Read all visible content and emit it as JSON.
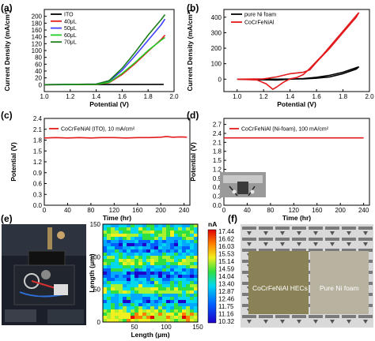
{
  "panels": {
    "a": "(a)",
    "b": "(b)",
    "c": "(c)",
    "d": "(d)",
    "e": "(e)",
    "f": "(f)"
  },
  "chart_data": [
    {
      "id": "a",
      "type": "line",
      "xlabel": "Potential (V)",
      "ylabel": "Current Density (mA/cm²)",
      "xlim": [
        1.0,
        2.0
      ],
      "ylim": [
        -20,
        220
      ],
      "xticks": [
        "1.0",
        "1.2",
        "1.4",
        "1.6",
        "1.8",
        "2.0"
      ],
      "yticks": [
        "0",
        "20",
        "40",
        "60",
        "80",
        "100",
        "120",
        "140",
        "160",
        "180",
        "200"
      ],
      "legend_position": "top-left",
      "series": [
        {
          "name": "ITO",
          "color": "#000000",
          "x": [
            1.0,
            1.92
          ],
          "y": [
            0,
            1
          ]
        },
        {
          "name": "40μL",
          "color": "#e31a1c",
          "x": [
            1.0,
            1.4,
            1.5,
            1.6,
            1.7,
            1.8,
            1.9,
            1.93
          ],
          "y": [
            0,
            1,
            6,
            30,
            62,
            98,
            132,
            145
          ]
        },
        {
          "name": "50μL",
          "color": "#4040ff",
          "x": [
            1.0,
            1.4,
            1.5,
            1.6,
            1.7,
            1.8,
            1.9,
            1.93
          ],
          "y": [
            0,
            2,
            10,
            42,
            85,
            130,
            175,
            192
          ]
        },
        {
          "name": "60μL",
          "color": "#22cc22",
          "x": [
            1.0,
            1.4,
            1.5,
            1.6,
            1.7,
            1.8,
            1.9,
            1.93
          ],
          "y": [
            0,
            1,
            7,
            33,
            65,
            100,
            130,
            138
          ]
        },
        {
          "name": "70μL",
          "color": "#1a7f1a",
          "x": [
            1.0,
            1.4,
            1.5,
            1.6,
            1.7,
            1.8,
            1.9,
            1.93
          ],
          "y": [
            0,
            2,
            12,
            48,
            95,
            145,
            190,
            205
          ]
        }
      ]
    },
    {
      "id": "b",
      "type": "line",
      "xlabel": "Potential (V)",
      "ylabel": "Current Density (mA/cm²)",
      "xlim": [
        0.9,
        2.0
      ],
      "ylim": [
        -80,
        450
      ],
      "xticks": [
        "1.0",
        "1.2",
        "1.4",
        "1.6",
        "1.8",
        "2.0"
      ],
      "yticks": [
        "0",
        "100",
        "200",
        "300",
        "400"
      ],
      "legend_position": "top-left",
      "series": [
        {
          "name": "pure Ni foam",
          "color": "#000000",
          "x": [
            1.0,
            1.3,
            1.5,
            1.6,
            1.7,
            1.8,
            1.9,
            1.92,
            1.8,
            1.7,
            1.6,
            1.5,
            1.4,
            1.3,
            1.2,
            1.0
          ],
          "y": [
            0,
            0,
            2,
            6,
            15,
            35,
            65,
            80,
            45,
            25,
            12,
            4,
            0,
            -6,
            -4,
            0
          ]
        },
        {
          "name": "CoCrFeNiAl",
          "color": "#e31a1c",
          "x": [
            1.0,
            1.2,
            1.3,
            1.4,
            1.5,
            1.55,
            1.6,
            1.7,
            1.8,
            1.9,
            1.92,
            1.85,
            1.75,
            1.65,
            1.55,
            1.5,
            1.45,
            1.4,
            1.35,
            1.3,
            1.27,
            1.22,
            1.15,
            1.0
          ],
          "y": [
            0,
            2,
            15,
            35,
            45,
            60,
            110,
            200,
            300,
            400,
            430,
            360,
            260,
            160,
            70,
            30,
            10,
            2,
            -20,
            -50,
            -65,
            -30,
            -5,
            0
          ]
        }
      ]
    },
    {
      "id": "c",
      "type": "line",
      "xlabel": "Time (hr)",
      "ylabel": "Potential (V)",
      "xlim": [
        0,
        250
      ],
      "ylim": [
        0.0,
        2.4
      ],
      "xticks": [
        "0",
        "40",
        "80",
        "120",
        "160",
        "200",
        "240"
      ],
      "yticks": [
        "0.0",
        "0.3",
        "0.6",
        "0.9",
        "1.2",
        "1.5",
        "1.8",
        "2.1",
        "2.4"
      ],
      "series": [
        {
          "name": "CoCrFeNiAl (ITO), 10 mA/cm²",
          "color": "#e31a1c",
          "x": [
            0,
            20,
            40,
            60,
            80,
            100,
            120,
            140,
            160,
            180,
            200,
            210,
            220,
            235,
            245
          ],
          "y": [
            1.86,
            1.87,
            1.86,
            1.87,
            1.86,
            1.87,
            1.87,
            1.86,
            1.87,
            1.87,
            1.88,
            1.9,
            1.88,
            1.89,
            1.88
          ]
        }
      ]
    },
    {
      "id": "d",
      "type": "line",
      "xlabel": "Time (hr)",
      "ylabel": "Potential (V)",
      "xlim": [
        0,
        250
      ],
      "ylim": [
        0.0,
        2.9
      ],
      "xticks": [
        "0",
        "40",
        "80",
        "120",
        "160",
        "200",
        "240"
      ],
      "yticks": [
        "0.0",
        "0.3",
        "0.6",
        "0.9",
        "1.2",
        "1.5",
        "1.8",
        "2.1",
        "2.4",
        "2.7"
      ],
      "series": [
        {
          "name": "CoCrFeNiAl (Ni-foam), 100 mA/cm²",
          "color": "#e31a1c",
          "x": [
            0,
            40,
            80,
            120,
            160,
            200,
            240
          ],
          "y": [
            2.25,
            2.25,
            2.25,
            2.25,
            2.25,
            2.25,
            2.25
          ]
        }
      ]
    },
    {
      "id": "e_map",
      "type": "heatmap",
      "xlabel": "Length (μm)",
      "ylabel": "Length (μm)",
      "xlim": [
        0,
        150
      ],
      "ylim": [
        0,
        150
      ],
      "xticks": [
        "50",
        "100",
        "150"
      ],
      "yticks": [
        "0",
        "50",
        "100",
        "150"
      ],
      "colorbar_unit": "nA",
      "colorbar_ticks": [
        "17.44",
        "16.62",
        "16.03",
        "15.53",
        "15.14",
        "14.59",
        "14.04",
        "13.40",
        "12.87",
        "12.46",
        "11.75",
        "11.16",
        "10.32"
      ]
    }
  ],
  "photo_f": {
    "left_label": "CoCrFeNiAl HECs",
    "right_label": "Pure Ni foam"
  }
}
